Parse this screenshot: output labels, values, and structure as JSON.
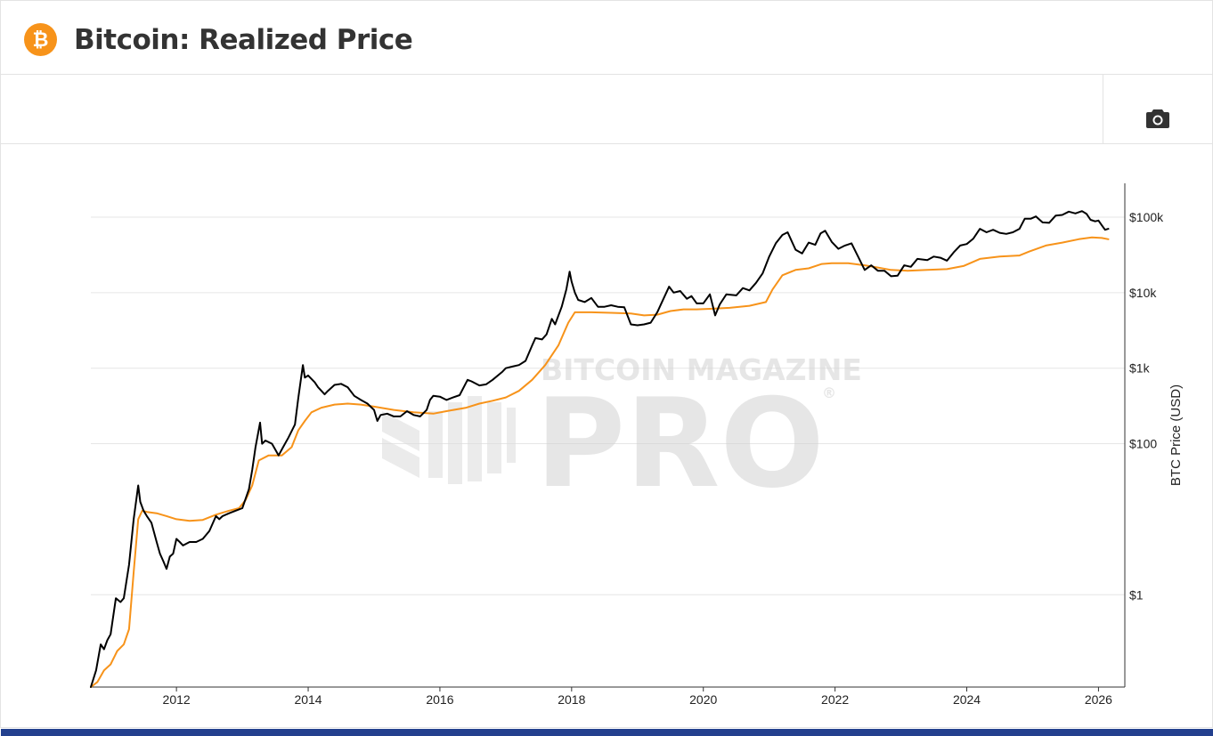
{
  "header": {
    "logo_glyph": "₿",
    "title": "Bitcoin: Realized Price"
  },
  "toolbar": {
    "camera_icon": "camera-icon"
  },
  "watermark": {
    "line1": "BITCOIN MAGAZINE",
    "line2": "PRO",
    "registered": "®"
  },
  "colors": {
    "price": "#000000",
    "realized": "#f7931a",
    "logo": "#f7931a",
    "grid": "#e6e6e6",
    "footer": "#23408e"
  },
  "chart_data": {
    "type": "line",
    "ylabel": "BTC Price (USD)",
    "yscale": "log",
    "ylim": [
      0.06,
      280000
    ],
    "xlim": [
      2010.7,
      2026.4
    ],
    "x_ticks": [
      2012,
      2014,
      2016,
      2018,
      2020,
      2022,
      2024,
      2026
    ],
    "x_tick_labels": [
      "2012",
      "2014",
      "2016",
      "2018",
      "2020",
      "2022",
      "2024",
      "2026"
    ],
    "y_ticks": [
      1,
      100,
      1000,
      10000,
      100000
    ],
    "y_tick_labels": [
      "$1",
      "$100",
      "$1k",
      "$10k",
      "$100k"
    ],
    "grid": true,
    "series": [
      {
        "key": "price",
        "points": [
          [
            2010.7,
            0.06
          ],
          [
            2010.78,
            0.1
          ],
          [
            2010.85,
            0.22
          ],
          [
            2010.9,
            0.19
          ],
          [
            2010.95,
            0.25
          ],
          [
            2011.0,
            0.3
          ],
          [
            2011.08,
            0.9
          ],
          [
            2011.15,
            0.8
          ],
          [
            2011.2,
            0.9
          ],
          [
            2011.28,
            2.5
          ],
          [
            2011.35,
            10
          ],
          [
            2011.42,
            28
          ],
          [
            2011.45,
            17
          ],
          [
            2011.5,
            13
          ],
          [
            2011.55,
            11
          ],
          [
            2011.62,
            9
          ],
          [
            2011.7,
            5
          ],
          [
            2011.75,
            3.5
          ],
          [
            2011.8,
            2.8
          ],
          [
            2011.85,
            2.2
          ],
          [
            2011.9,
            3.2
          ],
          [
            2011.95,
            3.5
          ],
          [
            2012.0,
            5.5
          ],
          [
            2012.05,
            5
          ],
          [
            2012.1,
            4.5
          ],
          [
            2012.2,
            5
          ],
          [
            2012.3,
            5
          ],
          [
            2012.4,
            5.5
          ],
          [
            2012.5,
            7
          ],
          [
            2012.6,
            11
          ],
          [
            2012.65,
            10
          ],
          [
            2012.7,
            11
          ],
          [
            2012.8,
            12
          ],
          [
            2012.9,
            13
          ],
          [
            2013.0,
            14
          ],
          [
            2013.1,
            25
          ],
          [
            2013.15,
            45
          ],
          [
            2013.2,
            90
          ],
          [
            2013.27,
            190
          ],
          [
            2013.3,
            100
          ],
          [
            2013.35,
            110
          ],
          [
            2013.45,
            100
          ],
          [
            2013.55,
            70
          ],
          [
            2013.62,
            90
          ],
          [
            2013.7,
            120
          ],
          [
            2013.8,
            180
          ],
          [
            2013.85,
            400
          ],
          [
            2013.92,
            1100
          ],
          [
            2013.95,
            750
          ],
          [
            2014.0,
            800
          ],
          [
            2014.1,
            650
          ],
          [
            2014.15,
            560
          ],
          [
            2014.25,
            450
          ],
          [
            2014.3,
            500
          ],
          [
            2014.4,
            600
          ],
          [
            2014.5,
            620
          ],
          [
            2014.6,
            560
          ],
          [
            2014.7,
            430
          ],
          [
            2014.8,
            380
          ],
          [
            2014.9,
            340
          ],
          [
            2015.0,
            280
          ],
          [
            2015.05,
            200
          ],
          [
            2015.1,
            240
          ],
          [
            2015.2,
            250
          ],
          [
            2015.3,
            230
          ],
          [
            2015.4,
            230
          ],
          [
            2015.5,
            270
          ],
          [
            2015.6,
            240
          ],
          [
            2015.7,
            230
          ],
          [
            2015.8,
            280
          ],
          [
            2015.85,
            380
          ],
          [
            2015.9,
            430
          ],
          [
            2016.0,
            420
          ],
          [
            2016.1,
            380
          ],
          [
            2016.2,
            410
          ],
          [
            2016.3,
            440
          ],
          [
            2016.42,
            700
          ],
          [
            2016.48,
            670
          ],
          [
            2016.6,
            590
          ],
          [
            2016.7,
            610
          ],
          [
            2016.8,
            700
          ],
          [
            2016.95,
            900
          ],
          [
            2017.0,
            1000
          ],
          [
            2017.1,
            1050
          ],
          [
            2017.2,
            1100
          ],
          [
            2017.3,
            1250
          ],
          [
            2017.4,
            2000
          ],
          [
            2017.45,
            2500
          ],
          [
            2017.55,
            2400
          ],
          [
            2017.62,
            2800
          ],
          [
            2017.7,
            4500
          ],
          [
            2017.75,
            3800
          ],
          [
            2017.85,
            6500
          ],
          [
            2017.92,
            11000
          ],
          [
            2017.97,
            19000
          ],
          [
            2018.0,
            14000
          ],
          [
            2018.05,
            10000
          ],
          [
            2018.1,
            8000
          ],
          [
            2018.2,
            7500
          ],
          [
            2018.3,
            8500
          ],
          [
            2018.4,
            6500
          ],
          [
            2018.5,
            6500
          ],
          [
            2018.6,
            6800
          ],
          [
            2018.7,
            6500
          ],
          [
            2018.8,
            6400
          ],
          [
            2018.9,
            3800
          ],
          [
            2019.0,
            3700
          ],
          [
            2019.1,
            3800
          ],
          [
            2019.2,
            4000
          ],
          [
            2019.3,
            5500
          ],
          [
            2019.4,
            8500
          ],
          [
            2019.48,
            12000
          ],
          [
            2019.55,
            10000
          ],
          [
            2019.65,
            10500
          ],
          [
            2019.75,
            8300
          ],
          [
            2019.82,
            9000
          ],
          [
            2019.9,
            7200
          ],
          [
            2020.0,
            7200
          ],
          [
            2020.1,
            9500
          ],
          [
            2020.18,
            5000
          ],
          [
            2020.25,
            7000
          ],
          [
            2020.35,
            9500
          ],
          [
            2020.5,
            9200
          ],
          [
            2020.6,
            11500
          ],
          [
            2020.7,
            10700
          ],
          [
            2020.8,
            13500
          ],
          [
            2020.9,
            18000
          ],
          [
            2021.0,
            30000
          ],
          [
            2021.1,
            45000
          ],
          [
            2021.2,
            58000
          ],
          [
            2021.28,
            63000
          ],
          [
            2021.4,
            37000
          ],
          [
            2021.5,
            33000
          ],
          [
            2021.6,
            46000
          ],
          [
            2021.7,
            43000
          ],
          [
            2021.78,
            61000
          ],
          [
            2021.85,
            66000
          ],
          [
            2021.95,
            47000
          ],
          [
            2022.05,
            38000
          ],
          [
            2022.15,
            42000
          ],
          [
            2022.25,
            45000
          ],
          [
            2022.35,
            30000
          ],
          [
            2022.45,
            20000
          ],
          [
            2022.55,
            23000
          ],
          [
            2022.65,
            19500
          ],
          [
            2022.75,
            19500
          ],
          [
            2022.85,
            16500
          ],
          [
            2022.95,
            16800
          ],
          [
            2023.05,
            23000
          ],
          [
            2023.15,
            22000
          ],
          [
            2023.25,
            28000
          ],
          [
            2023.4,
            27000
          ],
          [
            2023.5,
            30000
          ],
          [
            2023.6,
            29000
          ],
          [
            2023.7,
            26500
          ],
          [
            2023.8,
            34000
          ],
          [
            2023.9,
            42000
          ],
          [
            2024.0,
            44000
          ],
          [
            2024.1,
            52000
          ],
          [
            2024.2,
            70000
          ],
          [
            2024.3,
            63000
          ],
          [
            2024.4,
            68000
          ],
          [
            2024.5,
            62000
          ],
          [
            2024.6,
            60000
          ],
          [
            2024.7,
            63000
          ],
          [
            2024.8,
            70000
          ],
          [
            2024.88,
            95000
          ],
          [
            2024.97,
            95000
          ],
          [
            2025.05,
            102000
          ],
          [
            2025.15,
            85000
          ],
          [
            2025.25,
            84000
          ],
          [
            2025.35,
            105000
          ],
          [
            2025.45,
            107000
          ],
          [
            2025.55,
            118000
          ],
          [
            2025.65,
            112000
          ],
          [
            2025.75,
            120000
          ],
          [
            2025.82,
            110000
          ],
          [
            2025.88,
            92000
          ],
          [
            2025.95,
            88000
          ],
          [
            2026.0,
            90000
          ],
          [
            2026.05,
            78000
          ],
          [
            2026.1,
            68000
          ],
          [
            2026.15,
            70000
          ]
        ]
      },
      {
        "key": "realized",
        "points": [
          [
            2010.7,
            0.06
          ],
          [
            2010.8,
            0.07
          ],
          [
            2010.9,
            0.1
          ],
          [
            2011.0,
            0.12
          ],
          [
            2011.1,
            0.18
          ],
          [
            2011.2,
            0.22
          ],
          [
            2011.28,
            0.35
          ],
          [
            2011.35,
            2
          ],
          [
            2011.42,
            10
          ],
          [
            2011.48,
            13
          ],
          [
            2011.55,
            12.5
          ],
          [
            2011.7,
            12
          ],
          [
            2011.85,
            11
          ],
          [
            2012.0,
            10
          ],
          [
            2012.2,
            9.5
          ],
          [
            2012.4,
            9.8
          ],
          [
            2012.6,
            11.5
          ],
          [
            2012.8,
            13
          ],
          [
            2012.95,
            14
          ],
          [
            2013.05,
            18
          ],
          [
            2013.15,
            28
          ],
          [
            2013.25,
            60
          ],
          [
            2013.4,
            70
          ],
          [
            2013.6,
            70
          ],
          [
            2013.75,
            90
          ],
          [
            2013.85,
            150
          ],
          [
            2013.95,
            200
          ],
          [
            2014.05,
            260
          ],
          [
            2014.2,
            300
          ],
          [
            2014.4,
            330
          ],
          [
            2014.6,
            340
          ],
          [
            2014.8,
            330
          ],
          [
            2015.0,
            310
          ],
          [
            2015.3,
            280
          ],
          [
            2015.6,
            260
          ],
          [
            2015.9,
            250
          ],
          [
            2016.1,
            270
          ],
          [
            2016.4,
            300
          ],
          [
            2016.6,
            340
          ],
          [
            2016.8,
            370
          ],
          [
            2017.0,
            410
          ],
          [
            2017.2,
            500
          ],
          [
            2017.4,
            700
          ],
          [
            2017.6,
            1100
          ],
          [
            2017.8,
            2000
          ],
          [
            2017.95,
            4000
          ],
          [
            2018.05,
            5500
          ],
          [
            2018.3,
            5500
          ],
          [
            2018.6,
            5400
          ],
          [
            2018.9,
            5300
          ],
          [
            2019.1,
            5000
          ],
          [
            2019.3,
            5100
          ],
          [
            2019.5,
            5700
          ],
          [
            2019.7,
            6000
          ],
          [
            2019.9,
            6000
          ],
          [
            2020.1,
            6100
          ],
          [
            2020.4,
            6300
          ],
          [
            2020.7,
            6700
          ],
          [
            2020.95,
            7500
          ],
          [
            2021.05,
            11000
          ],
          [
            2021.2,
            17000
          ],
          [
            2021.4,
            20000
          ],
          [
            2021.6,
            21000
          ],
          [
            2021.8,
            24000
          ],
          [
            2021.95,
            24500
          ],
          [
            2022.2,
            24500
          ],
          [
            2022.45,
            23000
          ],
          [
            2022.65,
            21500
          ],
          [
            2022.85,
            20000
          ],
          [
            2023.1,
            19500
          ],
          [
            2023.4,
            20000
          ],
          [
            2023.7,
            20500
          ],
          [
            2023.95,
            22500
          ],
          [
            2024.2,
            28000
          ],
          [
            2024.5,
            30000
          ],
          [
            2024.8,
            31000
          ],
          [
            2024.95,
            35000
          ],
          [
            2025.2,
            42000
          ],
          [
            2025.45,
            46000
          ],
          [
            2025.7,
            51000
          ],
          [
            2025.9,
            54000
          ],
          [
            2026.05,
            53000
          ],
          [
            2026.15,
            51000
          ]
        ]
      }
    ]
  }
}
